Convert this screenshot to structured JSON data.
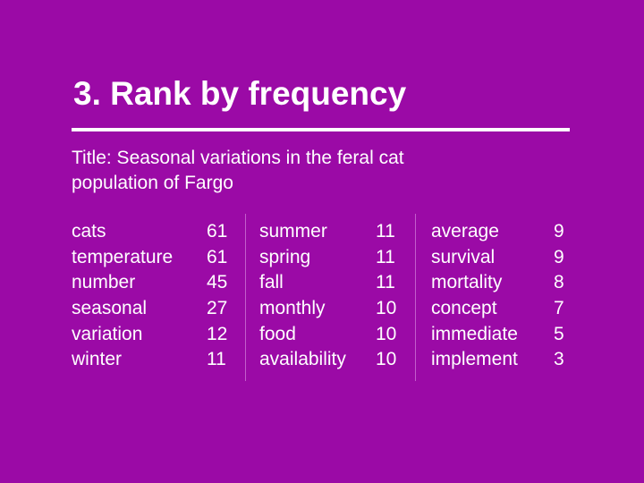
{
  "slide": {
    "heading": "3. Rank by frequency",
    "subtitle_line1": "Title: Seasonal variations in the feral cat",
    "subtitle_line2": "population of Fargo"
  },
  "columns": [
    {
      "rows": [
        {
          "word": "cats",
          "count": "61"
        },
        {
          "word": "temperature",
          "count": "61"
        },
        {
          "word": "number",
          "count": "45"
        },
        {
          "word": "seasonal",
          "count": "27"
        },
        {
          "word": "variation",
          "count": "12"
        },
        {
          "word": "winter",
          "count": "11"
        }
      ]
    },
    {
      "rows": [
        {
          "word": "summer",
          "count": "11"
        },
        {
          "word": "spring",
          "count": "11"
        },
        {
          "word": "fall",
          "count": "11"
        },
        {
          "word": "monthly",
          "count": "10"
        },
        {
          "word": "food",
          "count": "10"
        },
        {
          "word": "availability",
          "count": "10"
        }
      ]
    },
    {
      "rows": [
        {
          "word": "average",
          "count": "9"
        },
        {
          "word": "survival",
          "count": "9"
        },
        {
          "word": "mortality",
          "count": "8"
        },
        {
          "word": "concept",
          "count": "7"
        },
        {
          "word": "immediate",
          "count": "5"
        },
        {
          "word": "implement",
          "count": "3"
        }
      ]
    }
  ],
  "colors": {
    "background": "#9b0aa6",
    "text": "#ffffff",
    "divider": "#c35dcc"
  }
}
